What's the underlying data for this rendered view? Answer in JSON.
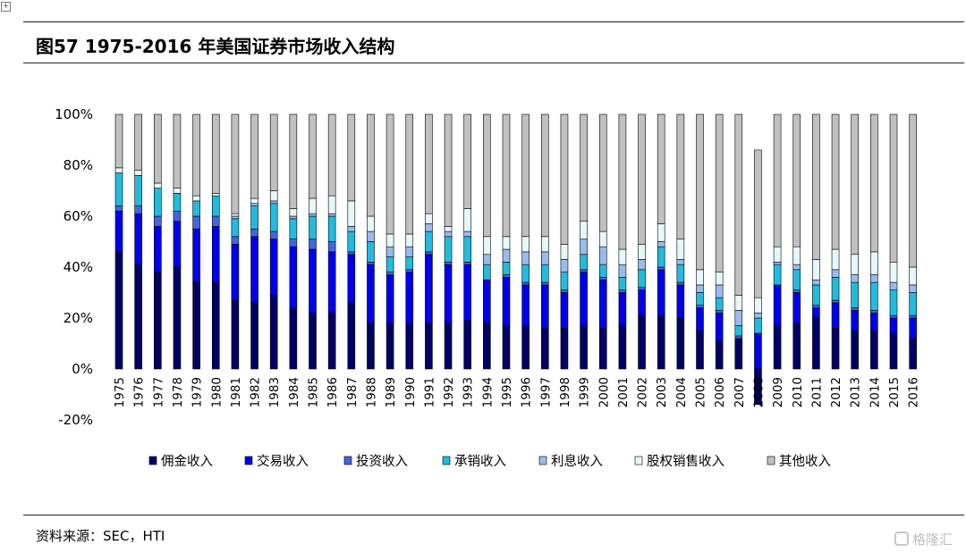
{
  "header": {
    "title": "图57 1975-2016 年美国证券市场收入结构"
  },
  "footer": {
    "source": "资料来源：SEC，HTI"
  },
  "watermark": {
    "text": "格隆汇"
  },
  "chart_data": {
    "type": "bar",
    "stacked": true,
    "title": "",
    "xlabel": "",
    "ylabel": "",
    "ylim": [
      -20,
      100
    ],
    "yticks": [
      "-20%",
      "0%",
      "20%",
      "40%",
      "60%",
      "80%",
      "100%"
    ],
    "grid": false,
    "legend_position": "bottom",
    "categories": [
      "1975",
      "1976",
      "1977",
      "1978",
      "1979",
      "1980",
      "1981",
      "1982",
      "1983",
      "1984",
      "1985",
      "1986",
      "1987",
      "1988",
      "1989",
      "1990",
      "1991",
      "1992",
      "1993",
      "1994",
      "1995",
      "1996",
      "1997",
      "1998",
      "1999",
      "2000",
      "2001",
      "2002",
      "2003",
      "2004",
      "2005",
      "2006",
      "2007",
      "2008",
      "2009",
      "2010",
      "2011",
      "2012",
      "2013",
      "2014",
      "2015",
      "2016"
    ],
    "series": [
      {
        "name": "佣金收入",
        "color": "#000066",
        "values": [
          46,
          41,
          38,
          40,
          34,
          34,
          27,
          26,
          29,
          24,
          22,
          22,
          26,
          18,
          18,
          18,
          18,
          18,
          19,
          18,
          17,
          17,
          16,
          16,
          17,
          16,
          17,
          21,
          21,
          20,
          15,
          11,
          12,
          -14,
          17,
          18,
          20,
          16,
          15,
          15,
          14,
          12
        ]
      },
      {
        "name": "交易收入",
        "color": "#0000ee",
        "values": [
          16,
          20,
          18,
          18,
          21,
          22,
          22,
          26,
          22,
          24,
          25,
          24,
          19,
          23,
          19,
          20,
          27,
          23,
          22,
          17,
          19,
          16,
          17,
          14,
          21,
          19,
          13,
          10,
          18,
          13,
          9,
          11,
          0,
          14,
          16,
          12,
          4,
          10,
          8,
          7,
          6,
          8
        ]
      },
      {
        "name": "投资收入",
        "color": "#4466dd",
        "values": [
          2,
          3,
          4,
          4,
          5,
          4,
          3,
          3,
          3,
          3,
          4,
          4,
          1,
          1,
          1,
          1,
          1,
          1,
          1,
          0,
          1,
          1,
          1,
          1,
          1,
          1,
          1,
          1,
          1,
          1,
          1,
          1,
          1,
          0,
          0,
          1,
          1,
          1,
          1,
          1,
          1,
          1
        ]
      },
      {
        "name": "承销收入",
        "color": "#22bbdd",
        "values": [
          13,
          12,
          11,
          7,
          6,
          8,
          7,
          9,
          11,
          8,
          9,
          10,
          8,
          8,
          6,
          5,
          8,
          10,
          10,
          6,
          5,
          7,
          7,
          7,
          6,
          5,
          5,
          7,
          8,
          7,
          5,
          5,
          4,
          6,
          8,
          8,
          8,
          9,
          10,
          11,
          10,
          9
        ]
      },
      {
        "name": "利息收入",
        "color": "#99bbee",
        "values": [
          0,
          0,
          0,
          0,
          0,
          0,
          1,
          1,
          1,
          1,
          1,
          1,
          2,
          4,
          4,
          4,
          3,
          2,
          2,
          4,
          5,
          5,
          5,
          5,
          6,
          7,
          5,
          4,
          2,
          2,
          3,
          5,
          6,
          2,
          1,
          2,
          2,
          3,
          3,
          3,
          3,
          3
        ],
        "_note": ""
      },
      {
        "name": "股权销售收入",
        "color": "#e6f7f9",
        "values": [
          2,
          2,
          2,
          2,
          2,
          1,
          1,
          2,
          4,
          3,
          6,
          7,
          10,
          6,
          5,
          5,
          4,
          2,
          9,
          7,
          5,
          6,
          6,
          6,
          7,
          6,
          6,
          6,
          7,
          8,
          6,
          5,
          6,
          6,
          6,
          7,
          8,
          8,
          8,
          9,
          8,
          7
        ]
      },
      {
        "name": "其他收入",
        "color": "#c0c0c0",
        "values": [
          21,
          22,
          27,
          29,
          32,
          31,
          39,
          33,
          30,
          37,
          33,
          32,
          34,
          40,
          47,
          47,
          39,
          44,
          37,
          48,
          48,
          48,
          48,
          51,
          42,
          46,
          53,
          51,
          43,
          49,
          61,
          62,
          71,
          58,
          52,
          52,
          57,
          53,
          55,
          54,
          58,
          60
        ]
      }
    ]
  }
}
